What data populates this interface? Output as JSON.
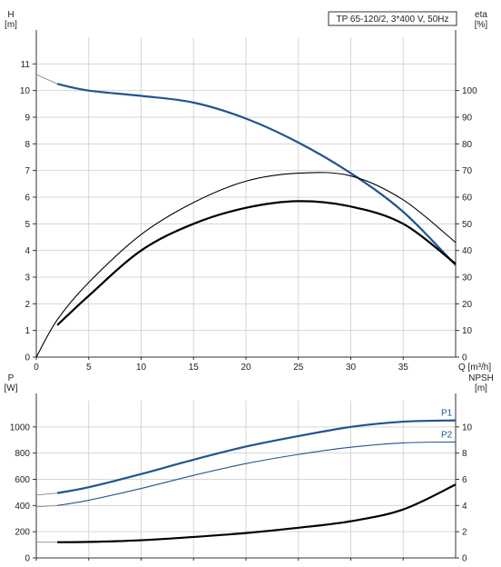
{
  "chart_data": [
    {
      "type": "line",
      "panel": "top",
      "title": "TP 65-120/2, 3*400 V, 50Hz",
      "xlabel": "Q [m³/h]",
      "ylabel_left_symbol": "H",
      "ylabel_left_unit": "[m]",
      "ylabel_right_symbol": "eta",
      "ylabel_right_unit": "[%]",
      "xlim": [
        0,
        40
      ],
      "ylim_left": [
        0,
        12
      ],
      "ylim_right": [
        0,
        120
      ],
      "x_ticks": [
        0,
        5,
        10,
        15,
        20,
        25,
        30,
        35
      ],
      "y_left_ticks": [
        0,
        1,
        2,
        3,
        4,
        5,
        6,
        7,
        8,
        9,
        10,
        11
      ],
      "y_right_ticks": [
        0,
        10,
        20,
        30,
        40,
        50,
        60,
        70,
        80,
        90,
        100
      ],
      "grid": true,
      "colors": {
        "head": "#1f5591",
        "eta": "#000000",
        "extension": "#8a8a8a",
        "grid": "#d6d6d6"
      },
      "series": [
        {
          "key": "head",
          "axis": "left",
          "x": [
            0,
            2,
            5,
            10,
            15,
            20,
            25,
            30,
            35,
            40
          ],
          "values": [
            10.6,
            10.25,
            10.0,
            9.8,
            9.55,
            8.95,
            8.05,
            6.9,
            5.45,
            3.45
          ],
          "extend_to_zero": true
        },
        {
          "key": "eta-1",
          "axis": "right",
          "x": [
            0,
            2,
            5,
            10,
            15,
            20,
            25,
            30,
            35,
            40
          ],
          "values": [
            0,
            14,
            28,
            46,
            58,
            66,
            69,
            68,
            59,
            43
          ]
        },
        {
          "key": "eta-2",
          "axis": "right",
          "x": [
            2,
            5,
            10,
            15,
            20,
            25,
            30,
            35,
            40
          ],
          "values": [
            12,
            23,
            40,
            50,
            56,
            58.5,
            56.5,
            50,
            35
          ]
        }
      ]
    },
    {
      "type": "line",
      "panel": "bottom",
      "xlim": [
        0,
        40
      ],
      "ylabel_left_symbol": "P",
      "ylabel_left_unit": "[W]",
      "ylabel_right_symbol": "NPSH",
      "ylabel_right_unit": "[m]",
      "ylim_left": [
        0,
        1200
      ],
      "ylim_right": [
        0,
        12
      ],
      "x_ticks": [
        0,
        5,
        10,
        15,
        20,
        25,
        30,
        35
      ],
      "y_left_ticks": [
        0,
        200,
        400,
        600,
        800,
        1000
      ],
      "y_right_ticks": [
        0,
        2,
        4,
        6,
        8,
        10
      ],
      "grid": true,
      "colors": {
        "p1": "#1f5591",
        "p2": "#1f5591",
        "npsh": "#000000",
        "extension": "#8a8a8a",
        "grid": "#d6d6d6"
      },
      "series": [
        {
          "key": "p1",
          "name": "P1",
          "axis": "left",
          "x": [
            0,
            2,
            5,
            10,
            15,
            20,
            25,
            30,
            35,
            40
          ],
          "values": [
            480,
            495,
            540,
            640,
            750,
            850,
            930,
            1000,
            1040,
            1050
          ],
          "extend_to_zero": true
        },
        {
          "key": "p2",
          "name": "P2",
          "axis": "left",
          "x": [
            0,
            2,
            5,
            10,
            15,
            20,
            25,
            30,
            35,
            40
          ],
          "values": [
            390,
            400,
            440,
            530,
            630,
            720,
            790,
            845,
            878,
            885
          ],
          "extend_to_zero": true
        },
        {
          "key": "npsh",
          "axis": "right",
          "x": [
            0,
            2,
            5,
            10,
            15,
            20,
            25,
            30,
            35,
            40
          ],
          "values": [
            1.2,
            1.2,
            1.22,
            1.35,
            1.6,
            1.9,
            2.3,
            2.8,
            3.7,
            5.6
          ],
          "extend_to_zero": true
        }
      ]
    }
  ]
}
